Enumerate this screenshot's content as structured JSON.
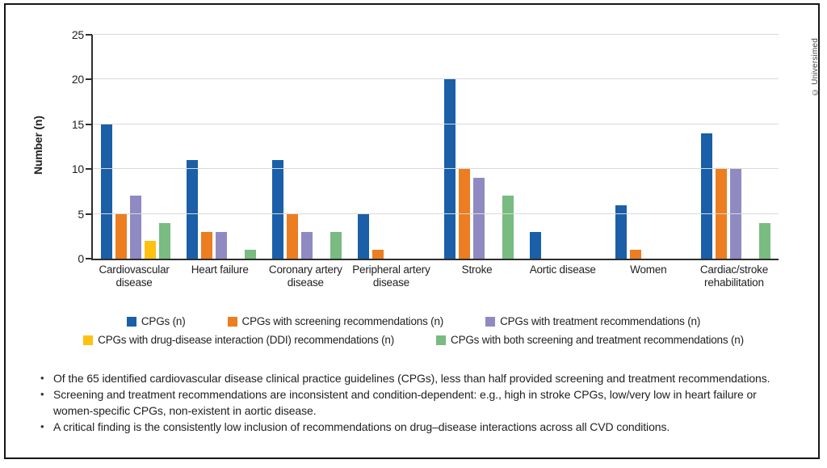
{
  "figure": {
    "copyright": "© Universimed"
  },
  "chart_data": {
    "type": "bar",
    "title": "",
    "xlabel": "",
    "ylabel": "Number (n)",
    "ylim": [
      0,
      25
    ],
    "yticks": [
      0,
      5,
      10,
      15,
      20,
      25
    ],
    "grid": true,
    "legend_position": "bottom",
    "categories": [
      "Cardiovascular disease",
      "Heart failure",
      "Coronary artery disease",
      "Peripheral artery disease",
      "Stroke",
      "Aortic disease",
      "Women",
      "Cardiac/stroke rehabilitation"
    ],
    "series": [
      {
        "name": "CPGs (n)",
        "color": "#1a5fa8",
        "values": [
          15,
          11,
          11,
          5,
          20,
          3,
          6,
          14
        ]
      },
      {
        "name": "CPGs with screening recommendations (n)",
        "color": "#ec7d20",
        "values": [
          5,
          3,
          5,
          1,
          10,
          0,
          1,
          10
        ]
      },
      {
        "name": "CPGs with treatment recommendations (n)",
        "color": "#8f8ac1",
        "values": [
          7,
          3,
          3,
          0,
          9,
          0,
          0,
          10
        ]
      },
      {
        "name": "CPGs with drug-disease interaction (DDI) recommendations (n)",
        "color": "#fec110",
        "values": [
          2,
          0,
          0,
          0,
          0,
          0,
          0,
          0
        ]
      },
      {
        "name": "CPGs with both screening and treatment recommendations (n)",
        "color": "#79bb81",
        "values": [
          4,
          1,
          3,
          0,
          7,
          0,
          0,
          4
        ]
      }
    ]
  },
  "notes": {
    "bullets": [
      "Of the 65 identified cardiovascular disease clinical practice guidelines (CPGs), less than half provided screening and treatment recommendations.",
      "Screening and treatment recommendations are inconsistent and condition-dependent: e.g., high in stroke CPGs, low/very low in heart failure or women-specific CPGs, non-existent in aortic disease.",
      "A critical finding is the consistently low inclusion of recommendations on drug–disease interactions across all CVD conditions."
    ]
  }
}
